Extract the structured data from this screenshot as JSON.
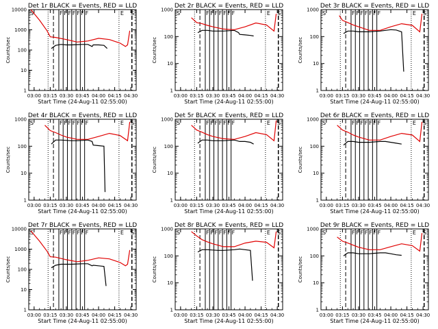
{
  "figure": {
    "x_axis_title": "Start Time (24-Aug-11 02:55:00)",
    "y_axis_title": "Counts/sec",
    "y_ticks": [
      "1",
      "10",
      "100",
      "1000",
      "10000"
    ],
    "x_ticks": [
      "03:00",
      "03:15",
      "03:30",
      "03:45",
      "04:00",
      "04:15",
      "04:30"
    ],
    "event_label": "F",
    "eclipse_label": "E",
    "saa_label": "S",
    "colors": {
      "events": "#000000",
      "lld": "#e00000"
    }
  },
  "chart_data": [
    {
      "type": "line",
      "title": "Det 1r BLACK = Events, RED = LLD",
      "xlabel": "Start Time (24-Aug-11 02:55:00)",
      "ylabel": "Counts/sec",
      "xlim": [
        "02:55",
        "04:35"
      ],
      "ylim": [
        1,
        10000
      ],
      "yscale": "log",
      "flare_markers": [
        "03:23",
        "03:27",
        "03:31",
        "03:35",
        "03:39",
        "03:43",
        "03:47"
      ],
      "series": [
        {
          "name": "Events",
          "color": "#000000",
          "x": [
            "03:16",
            "03:20",
            "03:25",
            "03:30",
            "03:35",
            "03:40",
            "03:45",
            "03:50",
            "03:54",
            "03:55",
            "04:00",
            "04:05",
            "04:08"
          ],
          "y": [
            120,
            170,
            190,
            180,
            180,
            185,
            190,
            190,
            150,
            180,
            180,
            170,
            120
          ]
        },
        {
          "name": "LLD",
          "color": "#e00000",
          "x": [
            "02:57",
            "03:05",
            "03:12",
            "03:15",
            "03:20",
            "03:30",
            "03:40",
            "03:50",
            "04:00",
            "04:10",
            "04:20",
            "04:25",
            "04:27",
            "04:29"
          ],
          "y": [
            10000,
            3000,
            900,
            450,
            420,
            330,
            250,
            280,
            380,
            330,
            220,
            150,
            180,
            900
          ]
        }
      ]
    },
    {
      "type": "line",
      "title": "Det 2r BLACK = Events, RED = LLD",
      "xlabel": "Start Time (24-Aug-11 02:55:00)",
      "ylabel": "Counts/sec",
      "xlim": [
        "02:55",
        "04:35"
      ],
      "ylim": [
        1,
        1000
      ],
      "yscale": "log",
      "flare_markers": [
        "03:23",
        "03:27",
        "03:31",
        "03:35",
        "03:39",
        "03:43",
        "03:47"
      ],
      "series": [
        {
          "name": "Events",
          "color": "#000000",
          "x": [
            "03:16",
            "03:20",
            "03:25",
            "03:30",
            "03:35",
            "03:40",
            "03:45",
            "03:50",
            "03:54",
            "03:55",
            "04:00",
            "04:05",
            "04:08"
          ],
          "y": [
            140,
            170,
            170,
            160,
            160,
            160,
            165,
            170,
            140,
            120,
            115,
            110,
            105
          ]
        },
        {
          "name": "LLD",
          "color": "#e00000",
          "x": [
            "03:10",
            "03:15",
            "03:20",
            "03:25",
            "03:30",
            "03:40",
            "03:50",
            "04:00",
            "04:10",
            "04:20",
            "04:27",
            "04:29"
          ],
          "y": [
            500,
            330,
            300,
            260,
            230,
            190,
            180,
            230,
            320,
            270,
            160,
            700
          ]
        }
      ]
    },
    {
      "type": "line",
      "title": "Det 3r BLACK = Events, RED = LLD",
      "xlabel": "Start Time (24-Aug-11 02:55:00)",
      "ylabel": "Counts/sec",
      "xlim": [
        "02:55",
        "04:35"
      ],
      "ylim": [
        1,
        1000
      ],
      "yscale": "log",
      "flare_markers": [
        "03:23",
        "03:27",
        "03:31",
        "03:35",
        "03:39",
        "03:43",
        "03:47"
      ],
      "series": [
        {
          "name": "Events",
          "color": "#000000",
          "x": [
            "03:16",
            "03:20",
            "03:25",
            "03:30",
            "03:35",
            "03:40",
            "03:45",
            "03:50",
            "03:55",
            "04:00",
            "04:05",
            "04:10",
            "04:12"
          ],
          "y": [
            130,
            160,
            160,
            150,
            150,
            150,
            155,
            160,
            170,
            180,
            175,
            150,
            5
          ]
        },
        {
          "name": "LLD",
          "color": "#e00000",
          "x": [
            "03:12",
            "03:15",
            "03:20",
            "03:25",
            "03:30",
            "03:40",
            "03:50",
            "04:00",
            "04:10",
            "04:20",
            "04:27",
            "04:29"
          ],
          "y": [
            600,
            400,
            330,
            270,
            230,
            170,
            170,
            230,
            300,
            260,
            150,
            700
          ]
        }
      ]
    },
    {
      "type": "line",
      "title": "Det 4r BLACK = Events, RED = LLD",
      "xlabel": "Start Time (24-Aug-11 02:55:00)",
      "ylabel": "Counts/sec",
      "xlim": [
        "02:55",
        "04:35"
      ],
      "ylim": [
        1,
        1000
      ],
      "yscale": "log",
      "flare_markers": [
        "03:23",
        "03:27",
        "03:31",
        "03:35",
        "03:39",
        "03:43",
        "03:47"
      ],
      "series": [
        {
          "name": "Events",
          "color": "#000000",
          "x": [
            "03:16",
            "03:20",
            "03:25",
            "03:30",
            "03:35",
            "03:40",
            "03:45",
            "03:50",
            "03:54",
            "03:55",
            "04:00",
            "04:05",
            "04:06"
          ],
          "y": [
            120,
            170,
            170,
            165,
            160,
            160,
            165,
            170,
            150,
            110,
            105,
            100,
            2
          ]
        },
        {
          "name": "LLD",
          "color": "#e00000",
          "x": [
            "03:10",
            "03:15",
            "03:20",
            "03:25",
            "03:30",
            "03:40",
            "03:50",
            "04:00",
            "04:10",
            "04:20",
            "04:27",
            "04:29"
          ],
          "y": [
            600,
            380,
            320,
            260,
            220,
            180,
            180,
            230,
            300,
            250,
            160,
            800
          ]
        }
      ]
    },
    {
      "type": "line",
      "title": "Det 5r BLACK = Events, RED = LLD",
      "xlabel": "Start Time (24-Aug-11 02:55:00)",
      "ylabel": "Counts/sec",
      "xlim": [
        "02:55",
        "04:35"
      ],
      "ylim": [
        1,
        1000
      ],
      "yscale": "log",
      "flare_markers": [
        "03:23",
        "03:27",
        "03:31",
        "03:35",
        "03:39",
        "03:43",
        "03:47"
      ],
      "series": [
        {
          "name": "Events",
          "color": "#000000",
          "x": [
            "03:16",
            "03:20",
            "03:25",
            "03:30",
            "03:35",
            "03:40",
            "03:45",
            "03:50",
            "03:55",
            "04:00",
            "04:05",
            "04:08"
          ],
          "y": [
            130,
            170,
            170,
            160,
            160,
            160,
            165,
            170,
            150,
            150,
            140,
            120
          ]
        },
        {
          "name": "LLD",
          "color": "#e00000",
          "x": [
            "03:10",
            "03:15",
            "03:20",
            "03:25",
            "03:30",
            "03:40",
            "03:50",
            "04:00",
            "04:10",
            "04:20",
            "04:27",
            "04:29"
          ],
          "y": [
            600,
            400,
            330,
            270,
            230,
            190,
            180,
            230,
            320,
            270,
            160,
            900
          ]
        }
      ]
    },
    {
      "type": "line",
      "title": "Det 6r BLACK = Events, RED = LLD",
      "xlabel": "Start Time (24-Aug-11 02:55:00)",
      "ylabel": "Counts/sec",
      "xlim": [
        "02:55",
        "04:35"
      ],
      "ylim": [
        1,
        1000
      ],
      "yscale": "log",
      "flare_markers": [
        "03:23",
        "03:27",
        "03:31",
        "03:35",
        "03:39",
        "03:43",
        "03:47"
      ],
      "series": [
        {
          "name": "Events",
          "color": "#000000",
          "x": [
            "03:16",
            "03:20",
            "03:25",
            "03:30",
            "03:35",
            "03:40",
            "03:45",
            "03:50",
            "03:55",
            "04:00",
            "04:05",
            "04:10"
          ],
          "y": [
            110,
            150,
            150,
            140,
            140,
            140,
            145,
            150,
            150,
            140,
            130,
            120
          ]
        },
        {
          "name": "LLD",
          "color": "#e00000",
          "x": [
            "03:10",
            "03:15",
            "03:20",
            "03:25",
            "03:30",
            "03:40",
            "03:50",
            "04:00",
            "04:10",
            "04:20",
            "04:27",
            "04:29"
          ],
          "y": [
            600,
            400,
            330,
            260,
            220,
            170,
            170,
            230,
            300,
            260,
            150,
            800
          ]
        }
      ]
    },
    {
      "type": "line",
      "title": "Det 7r BLACK = Events, RED = LLD",
      "xlabel": "Start Time (24-Aug-11 02:55:00)",
      "ylabel": "Counts/sec",
      "xlim": [
        "02:55",
        "04:35"
      ],
      "ylim": [
        1,
        10000
      ],
      "yscale": "log",
      "flare_markers": [
        "03:23",
        "03:27",
        "03:31",
        "03:35",
        "03:39",
        "03:43",
        "03:47"
      ],
      "series": [
        {
          "name": "Events",
          "color": "#000000",
          "x": [
            "03:16",
            "03:20",
            "03:25",
            "03:30",
            "03:35",
            "03:40",
            "03:45",
            "03:50",
            "03:54",
            "03:55",
            "04:00",
            "04:05",
            "04:07"
          ],
          "y": [
            120,
            160,
            180,
            180,
            180,
            185,
            190,
            190,
            150,
            160,
            150,
            140,
            15
          ]
        },
        {
          "name": "LLD",
          "color": "#e00000",
          "x": [
            "02:57",
            "03:05",
            "03:12",
            "03:15",
            "03:20",
            "03:30",
            "03:40",
            "03:50",
            "04:00",
            "04:10",
            "04:20",
            "04:25",
            "04:27",
            "04:29"
          ],
          "y": [
            8000,
            2500,
            800,
            420,
            400,
            300,
            240,
            280,
            370,
            330,
            220,
            150,
            180,
            900
          ]
        }
      ]
    },
    {
      "type": "line",
      "title": "Det 8r BLACK = Events, RED = LLD",
      "xlabel": "Start Time (24-Aug-11 02:55:00)",
      "ylabel": "Counts/sec",
      "xlim": [
        "02:55",
        "04:35"
      ],
      "ylim": [
        1,
        1000
      ],
      "yscale": "log",
      "flare_markers": [
        "03:23",
        "03:27",
        "03:31",
        "03:35",
        "03:39",
        "03:43",
        "03:47"
      ],
      "series": [
        {
          "name": "Events",
          "color": "#000000",
          "x": [
            "03:16",
            "03:20",
            "03:25",
            "03:30",
            "03:35",
            "03:40",
            "03:45",
            "03:50",
            "03:55",
            "04:00",
            "04:05",
            "04:07"
          ],
          "y": [
            140,
            170,
            170,
            165,
            160,
            160,
            165,
            170,
            180,
            170,
            160,
            12
          ]
        },
        {
          "name": "LLD",
          "color": "#e00000",
          "x": [
            "03:10",
            "03:15",
            "03:20",
            "03:25",
            "03:30",
            "03:40",
            "03:50",
            "04:00",
            "04:10",
            "04:20",
            "04:27",
            "04:29"
          ],
          "y": [
            800,
            550,
            400,
            330,
            280,
            220,
            220,
            300,
            350,
            320,
            200,
            800
          ]
        }
      ]
    },
    {
      "type": "line",
      "title": "Det 9r BLACK = Events, RED = LLD",
      "xlabel": "Start Time (24-Aug-11 02:55:00)",
      "ylabel": "Counts/sec",
      "xlim": [
        "02:55",
        "04:35"
      ],
      "ylim": [
        1,
        1000
      ],
      "yscale": "log",
      "flare_markers": [
        "03:23",
        "03:27",
        "03:31",
        "03:35",
        "03:39",
        "03:43",
        "03:47"
      ],
      "series": [
        {
          "name": "Events",
          "color": "#000000",
          "x": [
            "03:16",
            "03:20",
            "03:25",
            "03:30",
            "03:35",
            "03:40",
            "03:45",
            "03:50",
            "03:55",
            "04:00",
            "04:05",
            "04:10"
          ],
          "y": [
            100,
            130,
            130,
            120,
            120,
            120,
            125,
            130,
            130,
            120,
            110,
            105
          ]
        },
        {
          "name": "LLD",
          "color": "#e00000",
          "x": [
            "03:10",
            "03:15",
            "03:20",
            "03:25",
            "03:30",
            "03:40",
            "03:50",
            "04:00",
            "04:10",
            "04:20",
            "04:27",
            "04:29"
          ],
          "y": [
            500,
            350,
            300,
            250,
            210,
            170,
            170,
            220,
            280,
            240,
            150,
            700
          ]
        }
      ]
    }
  ]
}
